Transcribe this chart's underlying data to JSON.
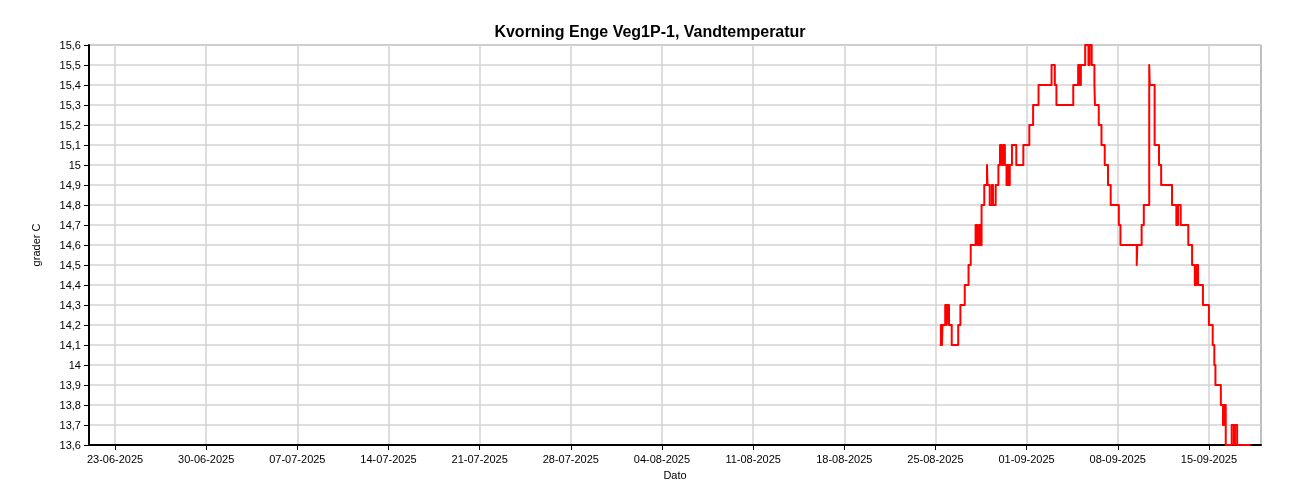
{
  "chart_data": {
    "type": "step",
    "title": "Kvorning Enge Veg1P-1, Vandtemperatur",
    "xlabel": "Dato",
    "ylabel": "grader C",
    "xlim": [
      "2025-06-21",
      "2025-09-19"
    ],
    "xticks": [
      {
        "value": "2025-06-23",
        "label": "23-06-2025"
      },
      {
        "value": "2025-06-30",
        "label": "30-06-2025"
      },
      {
        "value": "2025-07-07",
        "label": "07-07-2025"
      },
      {
        "value": "2025-07-14",
        "label": "14-07-2025"
      },
      {
        "value": "2025-07-21",
        "label": "21-07-2025"
      },
      {
        "value": "2025-07-28",
        "label": "28-07-2025"
      },
      {
        "value": "2025-08-04",
        "label": "04-08-2025"
      },
      {
        "value": "2025-08-11",
        "label": "11-08-2025"
      },
      {
        "value": "2025-08-18",
        "label": "18-08-2025"
      },
      {
        "value": "2025-08-25",
        "label": "25-08-2025"
      },
      {
        "value": "2025-09-01",
        "label": "01-09-2025"
      },
      {
        "value": "2025-09-08",
        "label": "08-09-2025"
      },
      {
        "value": "2025-09-15",
        "label": "15-09-2025"
      }
    ],
    "ylim": [
      13.6,
      15.6
    ],
    "yticks": [
      {
        "value": 13.6,
        "label": "13,6"
      },
      {
        "value": 13.7,
        "label": "13,7"
      },
      {
        "value": 13.8,
        "label": "13,8"
      },
      {
        "value": 13.9,
        "label": "13,9"
      },
      14,
      {
        "value": 14.1,
        "label": "14,1"
      },
      {
        "value": 14.2,
        "label": "14,2"
      },
      {
        "value": 14.3,
        "label": "14,3"
      },
      {
        "value": 14.4,
        "label": "14,4"
      },
      {
        "value": 14.5,
        "label": "14,5"
      },
      {
        "value": 14.6,
        "label": "14,6"
      },
      {
        "value": 14.7,
        "label": "14,7"
      },
      {
        "value": 14.8,
        "label": "14,8"
      },
      {
        "value": 14.9,
        "label": "14,9"
      },
      15,
      {
        "value": 15.1,
        "label": "15,1"
      },
      {
        "value": 15.2,
        "label": "15,2"
      },
      {
        "value": 15.3,
        "label": "15,3"
      },
      {
        "value": 15.4,
        "label": "15,4"
      },
      {
        "value": 15.5,
        "label": "15,5"
      },
      {
        "value": 15.6,
        "label": "15,6"
      }
    ],
    "grid": true,
    "marker": "none",
    "line_style": "solid",
    "series": [
      {
        "color": "#ff0000",
        "x": [
          "2025-08-25T08:00",
          "2025-08-25T10:00",
          "2025-08-25T12:00",
          "2025-08-25T13:00",
          "2025-08-25T18:00",
          "2025-08-25T21:00",
          "2025-08-25T22:00",
          "2025-08-26T01:00",
          "2025-08-26T06:00",
          "2025-08-26T18:00",
          "2025-08-26T22:00",
          "2025-08-27T06:00",
          "2025-08-27T13:00",
          "2025-08-27T17:00",
          "2025-08-28T02:00",
          "2025-08-28T05:00",
          "2025-08-28T08:00",
          "2025-08-28T11:00",
          "2025-08-28T13:00",
          "2025-08-28T18:00",
          "2025-08-28T23:00",
          "2025-08-29T00:00",
          "2025-08-29T04:00",
          "2025-08-29T08:00",
          "2025-08-29T10:00",
          "2025-08-29T15:00",
          "2025-08-29T20:00",
          "2025-08-29T23:00",
          "2025-08-30T02:00",
          "2025-08-30T05:00",
          "2025-08-30T08:00",
          "2025-08-30T11:00",
          "2025-08-30T13:00",
          "2025-08-30T15:00",
          "2025-08-30T17:00",
          "2025-08-30T21:00",
          "2025-08-31T05:00",
          "2025-08-31T18:00",
          "2025-09-01T05:00",
          "2025-09-01T12:00",
          "2025-09-01T22:00",
          "2025-09-02T22:00",
          "2025-09-03T04:00",
          "2025-09-03T07:00",
          "2025-09-04T14:00",
          "2025-09-04T23:00",
          "2025-09-05T02:00",
          "2025-09-05T04:00",
          "2025-09-05T12:00",
          "2025-09-05T18:00",
          "2025-09-05T20:00",
          "2025-09-06T00:00",
          "2025-09-06T05:00",
          "2025-09-06T06:00",
          "2025-09-06T13:00",
          "2025-09-06T18:00",
          "2025-09-07T00:00",
          "2025-09-07T06:00",
          "2025-09-07T11:00",
          "2025-09-08T02:00",
          "2025-09-08T05:00",
          "2025-09-09T11:00",
          "2025-09-09T12:00",
          "2025-09-09T20:00",
          "2025-09-10T00:00",
          "2025-09-10T10:00",
          "2025-09-10T11:00",
          "2025-09-10T20:00",
          "2025-09-11T04:00",
          "2025-09-11T08:00",
          "2025-09-12T04:00",
          "2025-09-12T12:00",
          "2025-09-12T15:00",
          "2025-09-12T20:00",
          "2025-09-13T10:00",
          "2025-09-13T17:00",
          "2025-09-13T22:00",
          "2025-09-14T01:00",
          "2025-09-14T04:00",
          "2025-09-14T13:00",
          "2025-09-15T00:00",
          "2025-09-15T07:00",
          "2025-09-15T10:00",
          "2025-09-15T12:00",
          "2025-09-15T22:00",
          "2025-09-16T02:00",
          "2025-09-16T04:00",
          "2025-09-16T07:00",
          "2025-09-16T18:00",
          "2025-09-16T22:00",
          "2025-09-17T00:00",
          "2025-09-17T04:00",
          "2025-09-18T05:00"
        ],
        "values": [
          14.1,
          14.2,
          14.1,
          14.2,
          14.3,
          14.2,
          14.3,
          14.2,
          14.1,
          14.2,
          14.3,
          14.4,
          14.5,
          14.6,
          14.7,
          14.6,
          14.7,
          14.6,
          14.8,
          14.9,
          15.0,
          14.9,
          14.8,
          14.9,
          14.8,
          14.9,
          15.0,
          15.1,
          15.0,
          15.1,
          15.0,
          14.9,
          15.0,
          14.9,
          15.0,
          15.1,
          15.0,
          15.1,
          15.2,
          15.3,
          15.4,
          15.5,
          15.4,
          15.3,
          15.4,
          15.5,
          15.4,
          15.5,
          15.6,
          15.5,
          15.6,
          15.5,
          15.4,
          15.3,
          15.2,
          15.1,
          15.0,
          14.9,
          14.8,
          14.7,
          14.6,
          14.5,
          14.6,
          14.7,
          14.8,
          15.5,
          15.4,
          15.1,
          15.0,
          14.9,
          14.8,
          14.7,
          14.8,
          14.7,
          14.6,
          14.5,
          14.4,
          14.5,
          14.4,
          14.3,
          14.2,
          14.1,
          14.0,
          13.9,
          13.8,
          13.7,
          13.8,
          13.6,
          13.7,
          13.6,
          13.7,
          13.6,
          13.6
        ]
      }
    ]
  }
}
